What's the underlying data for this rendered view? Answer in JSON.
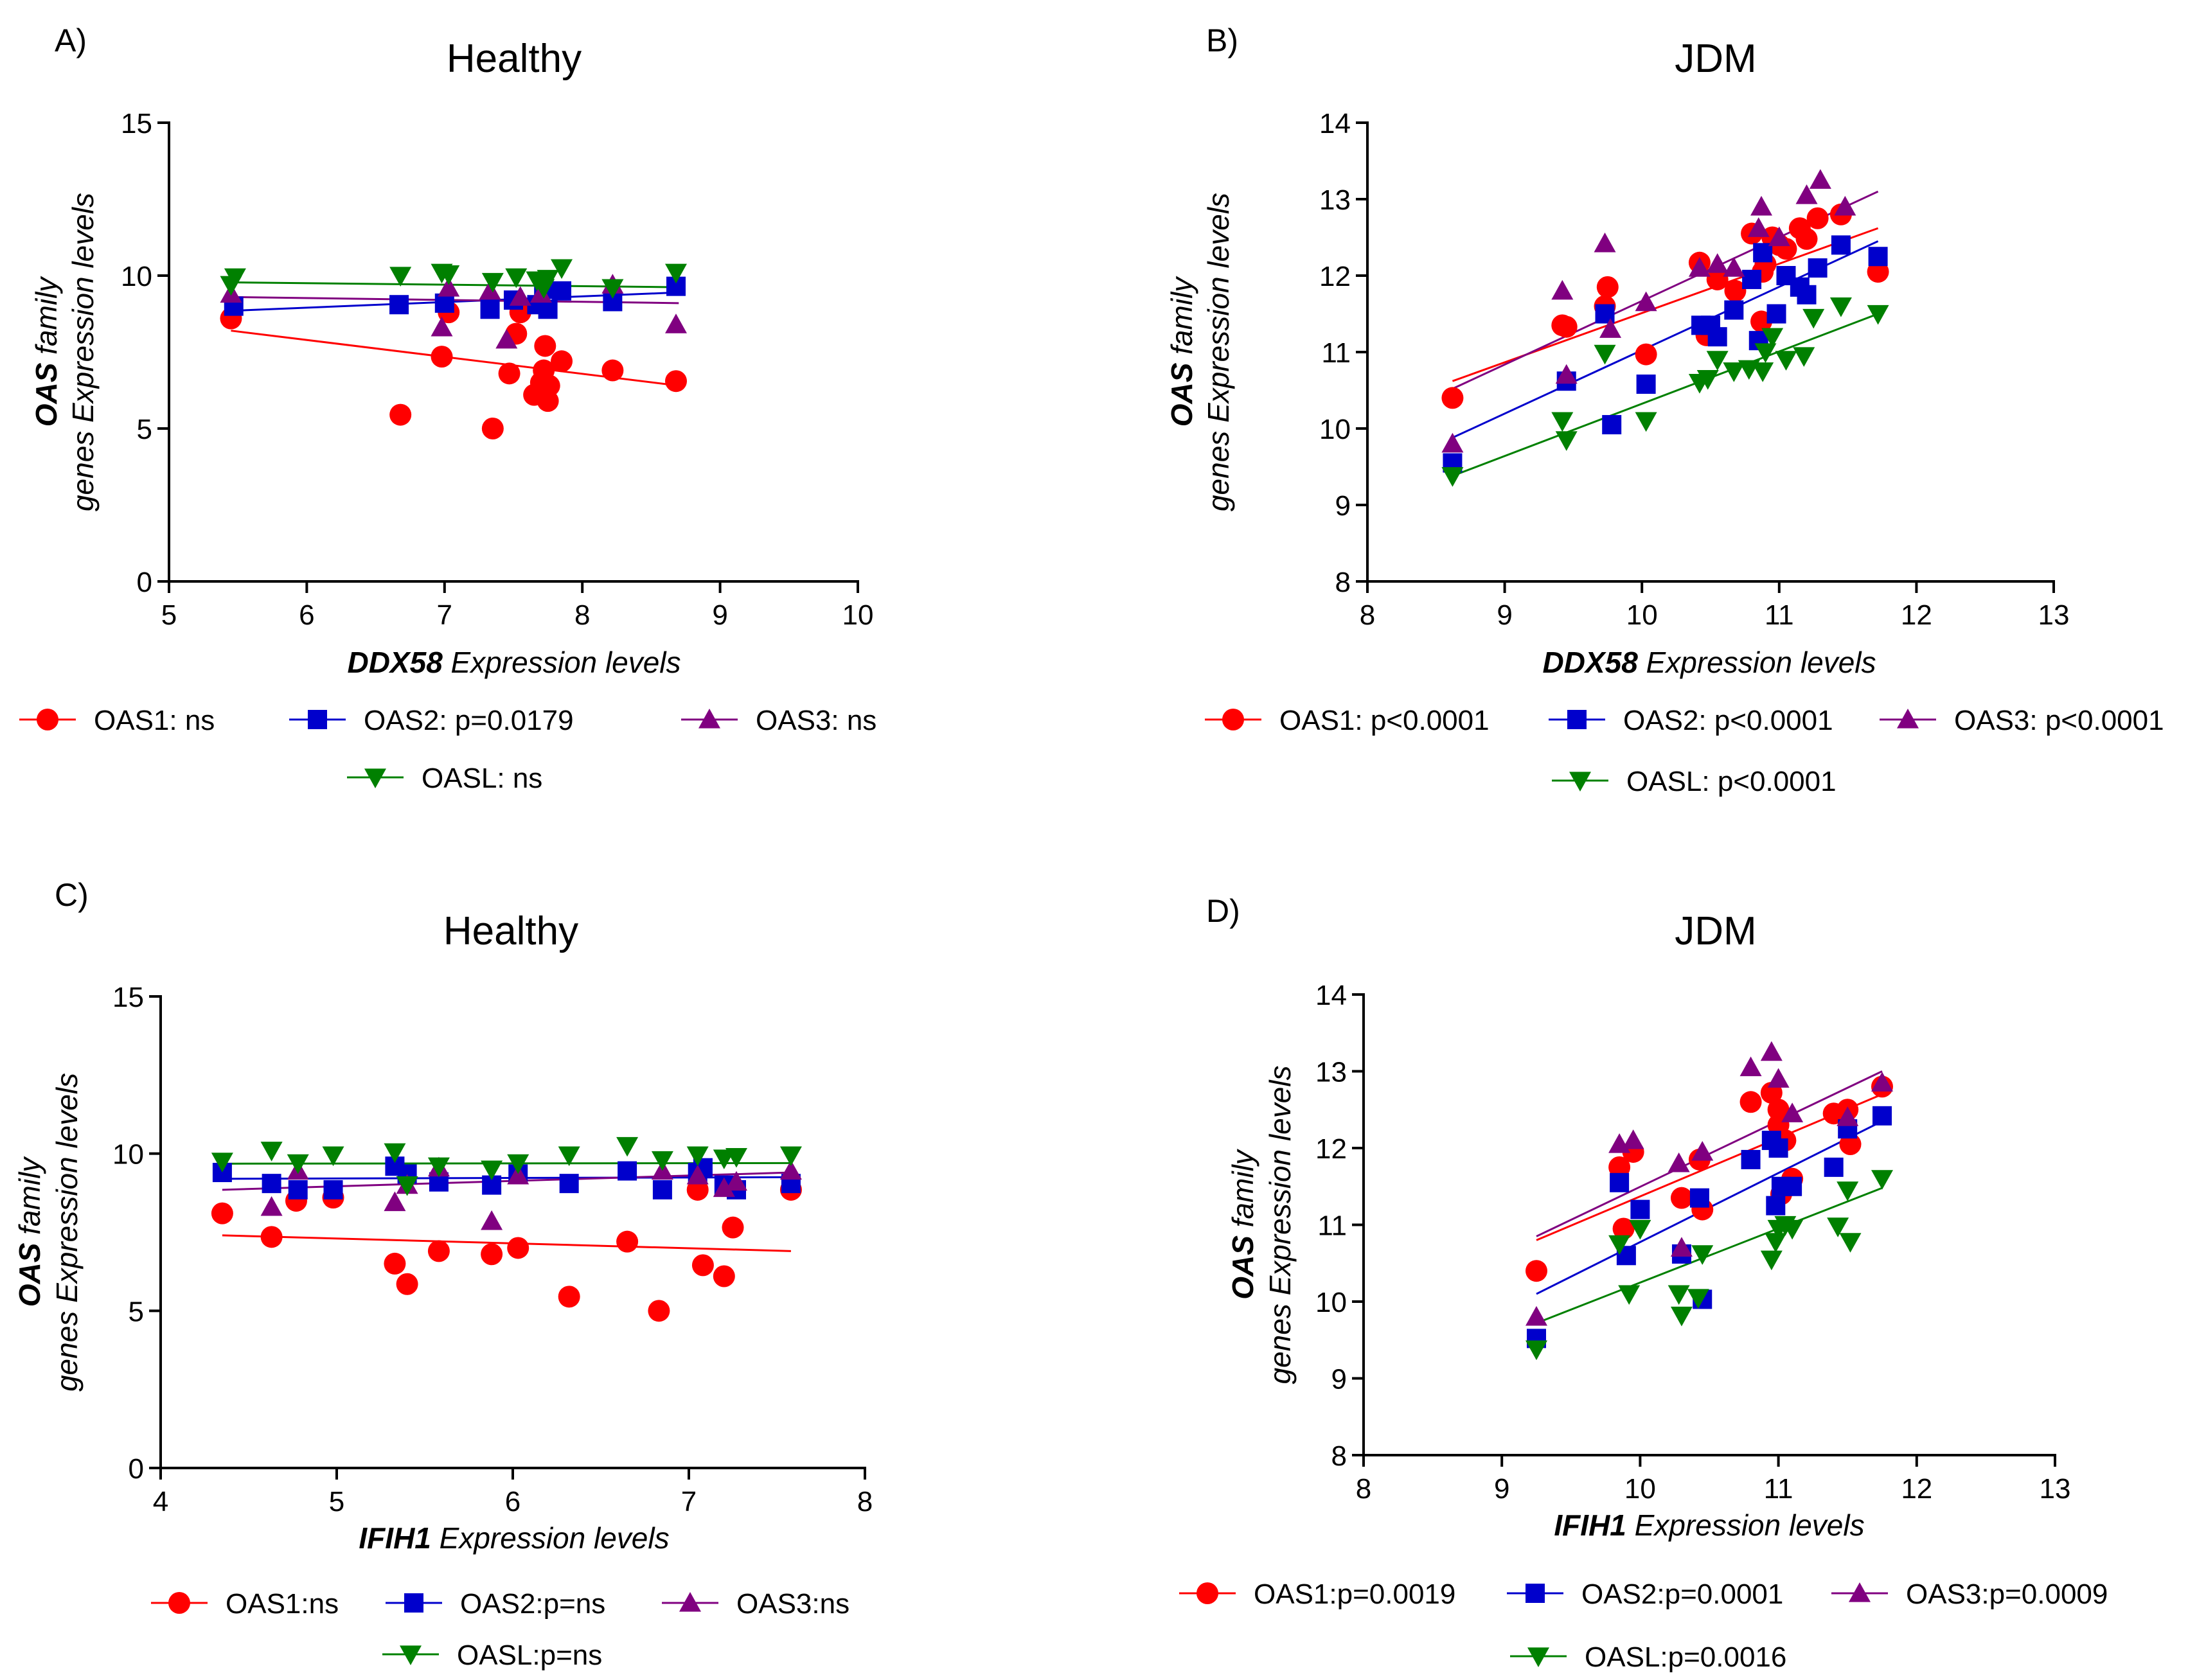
{
  "chart_data": [
    {
      "id": "A",
      "type": "scatter",
      "panel_label": "A)",
      "title": "Healthy",
      "xlabel_gene": "DDX58",
      "xlabel_rest": " Expression levels",
      "ylabel_line1_gene": "OAS",
      "ylabel_line1_rest": " family",
      "ylabel_line2": "genes Expression levels",
      "xlim": [
        5,
        10
      ],
      "ylim": [
        0,
        15
      ],
      "xticks": [
        5,
        6,
        7,
        8,
        9,
        10
      ],
      "yticks": [
        0,
        5,
        10,
        15
      ],
      "series": [
        {
          "name": "OAS1",
          "legend": "OAS1: ns",
          "color": "#ff0000",
          "marker": "circle",
          "fit": [
            5.45,
            8.2,
            8.7,
            6.4
          ],
          "x": [
            5.45,
            6.68,
            6.98,
            7.03,
            7.35,
            7.47,
            7.52,
            7.55,
            7.65,
            7.7,
            7.72,
            7.73,
            7.75,
            7.76,
            7.85,
            8.22,
            8.68
          ],
          "y": [
            8.6,
            5.45,
            7.35,
            8.8,
            5.0,
            6.8,
            8.1,
            8.8,
            6.1,
            6.5,
            6.9,
            7.7,
            5.9,
            6.4,
            7.2,
            6.9,
            6.55
          ]
        },
        {
          "name": "OAS2",
          "legend": "OAS2: p=0.0179",
          "color": "#0000cc",
          "marker": "square",
          "fit": [
            5.45,
            8.85,
            8.7,
            9.45
          ],
          "x": [
            5.47,
            6.67,
            7.0,
            7.33,
            7.5,
            7.67,
            7.72,
            7.75,
            7.85,
            8.22,
            8.68
          ],
          "y": [
            9.0,
            9.05,
            9.1,
            8.9,
            9.2,
            9.05,
            9.55,
            8.9,
            9.5,
            9.15,
            9.65
          ]
        },
        {
          "name": "OAS3",
          "legend": "OAS3: ns",
          "color": "#800080",
          "marker": "triangle",
          "fit": [
            5.45,
            9.3,
            8.7,
            9.1
          ],
          "x": [
            5.45,
            6.98,
            7.03,
            7.33,
            7.45,
            7.55,
            7.7,
            8.22,
            8.68
          ],
          "y": [
            9.4,
            8.3,
            9.6,
            9.5,
            7.9,
            9.3,
            9.4,
            9.7,
            8.4
          ]
        },
        {
          "name": "OASL",
          "legend": "OASL: ns",
          "color": "#008000",
          "marker": "triangle-down",
          "fit": [
            5.45,
            9.78,
            8.7,
            9.62
          ],
          "x": [
            5.45,
            5.48,
            6.68,
            6.98,
            7.03,
            7.35,
            7.52,
            7.67,
            7.72,
            7.75,
            7.85,
            8.22,
            8.68
          ],
          "y": [
            9.7,
            9.95,
            10.0,
            10.1,
            10.05,
            9.8,
            9.95,
            9.85,
            9.6,
            9.9,
            10.25,
            9.6,
            10.1
          ]
        }
      ],
      "legend_rows": [
        [
          0,
          1,
          2
        ],
        [
          3
        ]
      ]
    },
    {
      "id": "B",
      "type": "scatter",
      "panel_label": "B)",
      "title": "JDM",
      "xlabel_gene": "DDX58",
      "xlabel_rest": " Expression levels",
      "ylabel_line1_gene": "OAS",
      "ylabel_line1_rest": " family",
      "ylabel_line2": "genes Expression levels",
      "xlim": [
        8,
        13
      ],
      "ylim": [
        8,
        14
      ],
      "xticks": [
        8,
        9,
        10,
        11,
        12,
        13
      ],
      "yticks": [
        8,
        9,
        10,
        11,
        12,
        13,
        14
      ],
      "series": [
        {
          "name": "OAS1",
          "legend": "OAS1: p<0.0001",
          "color": "#ff0000",
          "marker": "circle",
          "fit": [
            8.62,
            10.62,
            11.72,
            12.62
          ],
          "x": [
            8.62,
            9.42,
            9.45,
            9.73,
            9.75,
            10.03,
            10.42,
            10.47,
            10.55,
            10.68,
            10.8,
            10.87,
            10.88,
            10.9,
            10.95,
            11.0,
            11.05,
            11.15,
            11.2,
            11.28,
            11.45,
            11.72
          ],
          "y": [
            10.4,
            11.35,
            11.33,
            11.6,
            11.85,
            10.97,
            12.17,
            11.22,
            11.95,
            11.8,
            12.55,
            11.4,
            12.05,
            12.15,
            12.5,
            12.4,
            12.35,
            12.62,
            12.48,
            12.75,
            12.8,
            12.05
          ]
        },
        {
          "name": "OAS2",
          "legend": "OAS2: p<0.0001",
          "color": "#0000cc",
          "marker": "square",
          "fit": [
            8.62,
            9.88,
            11.72,
            12.45
          ],
          "x": [
            8.62,
            9.45,
            9.73,
            9.78,
            10.03,
            10.43,
            10.5,
            10.55,
            10.67,
            10.8,
            10.85,
            10.88,
            10.98,
            11.05,
            11.15,
            11.2,
            11.28,
            11.45,
            11.72
          ],
          "y": [
            9.55,
            10.62,
            11.5,
            10.05,
            10.58,
            11.35,
            11.35,
            11.2,
            11.55,
            11.95,
            11.15,
            12.3,
            11.5,
            12.0,
            11.85,
            11.75,
            12.1,
            12.4,
            12.25
          ]
        },
        {
          "name": "OAS3",
          "legend": "OAS3: p<0.0001",
          "color": "#800080",
          "marker": "triangle",
          "fit": [
            8.62,
            10.52,
            11.72,
            13.1
          ],
          "x": [
            8.62,
            9.42,
            9.45,
            9.73,
            9.77,
            10.03,
            10.42,
            10.55,
            10.67,
            10.85,
            10.87,
            11.0,
            11.2,
            11.3,
            11.48
          ],
          "y": [
            9.8,
            11.8,
            10.7,
            12.42,
            11.3,
            11.65,
            12.1,
            12.15,
            12.1,
            12.62,
            12.9,
            12.5,
            13.05,
            13.25,
            12.9
          ]
        },
        {
          "name": "OASL",
          "legend": "OASL: p<0.0001",
          "color": "#008000",
          "marker": "triangle-down",
          "fit": [
            8.62,
            9.38,
            11.72,
            11.5
          ],
          "x": [
            8.62,
            9.42,
            9.45,
            9.73,
            10.03,
            10.42,
            10.48,
            10.55,
            10.67,
            10.78,
            10.88,
            10.9,
            10.95,
            11.05,
            11.18,
            11.25,
            11.45,
            11.72
          ],
          "y": [
            9.38,
            10.1,
            9.85,
            10.98,
            10.1,
            10.6,
            10.65,
            10.9,
            10.75,
            10.78,
            10.75,
            11.0,
            11.2,
            10.9,
            10.95,
            11.45,
            11.6,
            11.5
          ]
        }
      ],
      "legend_rows": [
        [
          0,
          1,
          2
        ],
        [
          3
        ]
      ]
    },
    {
      "id": "C",
      "type": "scatter",
      "panel_label": "C)",
      "title": "Healthy",
      "xlabel_gene": "IFIH1",
      "xlabel_rest": " Expression levels",
      "ylabel_line1_gene": "OAS",
      "ylabel_line1_rest": " family",
      "ylabel_line2": "genes Expression levels",
      "xlim": [
        4,
        8
      ],
      "ylim": [
        0,
        15
      ],
      "xticks": [
        4,
        5,
        6,
        7,
        8
      ],
      "yticks": [
        0,
        5,
        10,
        15
      ],
      "series": [
        {
          "name": "OAS1",
          "legend": "OAS1:ns",
          "color": "#ff0000",
          "marker": "circle",
          "fit": [
            4.35,
            7.4,
            7.58,
            6.9
          ],
          "x": [
            4.35,
            4.63,
            4.77,
            4.98,
            5.33,
            5.4,
            5.58,
            5.88,
            6.03,
            6.32,
            6.65,
            6.83,
            7.05,
            7.08,
            7.2,
            7.25,
            7.58
          ],
          "y": [
            8.1,
            7.35,
            8.5,
            8.6,
            6.5,
            5.85,
            6.9,
            6.8,
            7.0,
            5.45,
            7.2,
            5.0,
            8.85,
            6.45,
            6.1,
            7.65,
            8.85
          ]
        },
        {
          "name": "OAS2",
          "legend": "OAS2:p=ns",
          "color": "#0000cc",
          "marker": "square",
          "fit": [
            4.35,
            9.2,
            7.58,
            9.25
          ],
          "x": [
            4.35,
            4.63,
            4.78,
            4.98,
            5.33,
            5.4,
            5.58,
            5.88,
            6.03,
            6.32,
            6.65,
            6.85,
            7.05,
            7.08,
            7.2,
            7.27,
            7.58
          ],
          "y": [
            9.4,
            9.05,
            8.85,
            8.85,
            9.6,
            9.35,
            9.1,
            9.0,
            9.35,
            9.05,
            9.45,
            8.85,
            9.4,
            9.55,
            9.0,
            8.85,
            9.05
          ]
        },
        {
          "name": "OAS3",
          "legend": "OAS3:ns",
          "color": "#800080",
          "marker": "triangle",
          "fit": [
            4.35,
            8.85,
            7.58,
            9.4
          ],
          "x": [
            4.63,
            4.78,
            5.33,
            5.4,
            5.58,
            5.88,
            6.03,
            6.85,
            7.05,
            7.2,
            7.27,
            7.58
          ],
          "y": [
            8.3,
            9.45,
            8.45,
            9.0,
            9.55,
            7.85,
            9.3,
            9.45,
            9.3,
            8.9,
            9.1,
            9.45
          ]
        },
        {
          "name": "OASL",
          "legend": "OASL:p=ns",
          "color": "#008000",
          "marker": "triangle-down",
          "fit": [
            4.35,
            9.68,
            7.58,
            9.7
          ],
          "x": [
            4.35,
            4.63,
            4.78,
            4.98,
            5.33,
            5.4,
            5.58,
            5.88,
            6.03,
            6.32,
            6.65,
            6.85,
            7.05,
            7.2,
            7.27,
            7.58
          ],
          "y": [
            9.75,
            10.1,
            9.7,
            9.95,
            10.05,
            9.0,
            9.6,
            9.5,
            9.7,
            9.95,
            10.25,
            9.8,
            9.95,
            9.85,
            9.9,
            9.95
          ]
        }
      ],
      "legend_rows": [
        [
          0,
          1,
          2
        ],
        [
          3
        ]
      ]
    },
    {
      "id": "D",
      "type": "scatter",
      "panel_label": "D)",
      "title": "JDM",
      "xlabel_gene": "IFIH1",
      "xlabel_rest": " Expression levels",
      "ylabel_line1_gene": "OAS",
      "ylabel_line1_rest": " family",
      "ylabel_line2": "genes Expression levels",
      "xlim": [
        8,
        13
      ],
      "ylim": [
        8,
        14
      ],
      "xticks": [
        8,
        9,
        10,
        11,
        12,
        13
      ],
      "yticks": [
        8,
        9,
        10,
        11,
        12,
        13,
        14
      ],
      "series": [
        {
          "name": "OAS1",
          "legend": "OAS1:p=0.0019",
          "color": "#ff0000",
          "marker": "circle",
          "fit": [
            9.25,
            10.8,
            11.75,
            12.7
          ],
          "x": [
            9.25,
            9.85,
            9.88,
            9.95,
            10.3,
            10.43,
            10.45,
            10.8,
            10.95,
            11.0,
            11.0,
            11.02,
            11.05,
            11.1,
            11.4,
            11.5,
            11.52,
            11.75
          ],
          "y": [
            10.4,
            11.75,
            10.95,
            11.95,
            11.35,
            11.85,
            11.2,
            12.6,
            12.72,
            12.5,
            12.3,
            11.4,
            12.1,
            11.6,
            12.45,
            12.5,
            12.05,
            12.8
          ]
        },
        {
          "name": "OAS2",
          "legend": "OAS2:p=0.0001",
          "color": "#0000cc",
          "marker": "square",
          "fit": [
            9.25,
            10.1,
            11.75,
            12.35
          ],
          "x": [
            9.25,
            9.85,
            9.9,
            10.0,
            10.3,
            10.43,
            10.45,
            10.8,
            10.95,
            10.98,
            11.0,
            11.02,
            11.1,
            11.4,
            11.5,
            11.75
          ],
          "y": [
            9.52,
            11.55,
            10.6,
            11.2,
            10.62,
            11.35,
            10.03,
            11.85,
            12.1,
            11.25,
            12.0,
            11.5,
            11.5,
            11.75,
            12.25,
            12.42
          ]
        },
        {
          "name": "OAS3",
          "legend": "OAS3:p=0.0009",
          "color": "#800080",
          "marker": "triangle",
          "fit": [
            9.25,
            10.85,
            11.75,
            13.0
          ],
          "x": [
            9.25,
            9.85,
            9.95,
            10.28,
            10.3,
            10.45,
            10.8,
            10.95,
            11.0,
            11.1,
            11.5,
            11.75
          ],
          "y": [
            9.8,
            12.05,
            12.1,
            11.8,
            10.7,
            11.95,
            13.05,
            13.25,
            12.9,
            12.45,
            12.4,
            12.85
          ]
        },
        {
          "name": "OASL",
          "legend": "OASL:p=0.0016",
          "color": "#008000",
          "marker": "triangle-down",
          "fit": [
            9.25,
            9.72,
            11.75,
            11.48
          ],
          "x": [
            9.25,
            9.85,
            9.92,
            10.0,
            10.28,
            10.3,
            10.42,
            10.45,
            10.95,
            10.98,
            11.0,
            11.05,
            11.1,
            11.43,
            11.5,
            11.52,
            11.75
          ],
          "y": [
            9.38,
            10.75,
            10.1,
            10.95,
            10.1,
            9.82,
            10.05,
            10.62,
            10.55,
            10.78,
            10.95,
            11.0,
            10.95,
            10.98,
            11.45,
            10.78,
            11.6
          ]
        }
      ],
      "legend_rows": [
        [
          0,
          1,
          2
        ],
        [
          3
        ]
      ]
    }
  ]
}
